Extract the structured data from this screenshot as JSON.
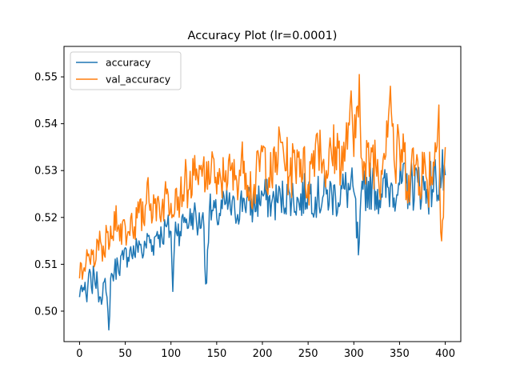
{
  "chart_data": {
    "type": "line",
    "title": "Accuracy Plot (lr=0.0001)",
    "xlabel": "",
    "ylabel": "",
    "xlim": [
      -17,
      417
    ],
    "ylim": [
      0.4935,
      0.5565
    ],
    "xticks": [
      0,
      50,
      100,
      150,
      200,
      250,
      300,
      350,
      400
    ],
    "yticks": [
      0.5,
      0.51,
      0.52,
      0.53,
      0.54,
      0.55
    ],
    "ytick_labels": [
      "0.50",
      "0.51",
      "0.52",
      "0.53",
      "0.54",
      "0.55"
    ],
    "grid": false,
    "legend_position": "top-left",
    "series": [
      {
        "name": "accuracy",
        "color": "#1f77b4",
        "key_points": [
          [
            0,
            0.503
          ],
          [
            2,
            0.5055
          ],
          [
            5,
            0.5045
          ],
          [
            8,
            0.502
          ],
          [
            10,
            0.508
          ],
          [
            13,
            0.505
          ],
          [
            16,
            0.508
          ],
          [
            20,
            0.505
          ],
          [
            23,
            0.503
          ],
          [
            26,
            0.506
          ],
          [
            29,
            0.504
          ],
          [
            32,
            0.496
          ],
          [
            34,
            0.507
          ],
          [
            38,
            0.5085
          ],
          [
            42,
            0.51
          ],
          [
            48,
            0.511
          ],
          [
            55,
            0.513
          ],
          [
            60,
            0.512
          ],
          [
            65,
            0.515
          ],
          [
            70,
            0.512
          ],
          [
            75,
            0.516
          ],
          [
            80,
            0.514
          ],
          [
            85,
            0.517
          ],
          [
            90,
            0.516
          ],
          [
            95,
            0.518
          ],
          [
            100,
            0.517
          ],
          [
            102,
            0.5042
          ],
          [
            105,
            0.519
          ],
          [
            110,
            0.517
          ],
          [
            115,
            0.52
          ],
          [
            120,
            0.519
          ],
          [
            125,
            0.521
          ],
          [
            130,
            0.518
          ],
          [
            135,
            0.521
          ],
          [
            138,
            0.5058
          ],
          [
            142,
            0.5215
          ],
          [
            150,
            0.52
          ],
          [
            160,
            0.523
          ],
          [
            170,
            0.521
          ],
          [
            180,
            0.524
          ],
          [
            190,
            0.522
          ],
          [
            200,
            0.525
          ],
          [
            210,
            0.523
          ],
          [
            220,
            0.524
          ],
          [
            230,
            0.525
          ],
          [
            240,
            0.523
          ],
          [
            250,
            0.526
          ],
          [
            260,
            0.524
          ],
          [
            270,
            0.525
          ],
          [
            280,
            0.5245
          ],
          [
            290,
            0.526
          ],
          [
            300,
            0.5255
          ],
          [
            305,
            0.512
          ],
          [
            310,
            0.526
          ],
          [
            320,
            0.527
          ],
          [
            330,
            0.525
          ],
          [
            340,
            0.5265
          ],
          [
            350,
            0.527
          ],
          [
            360,
            0.5265
          ],
          [
            370,
            0.5275
          ],
          [
            380,
            0.526
          ],
          [
            390,
            0.528
          ],
          [
            400,
            0.529
          ]
        ]
      },
      {
        "name": "val_accuracy",
        "color": "#ff7f0e",
        "key_points": [
          [
            0,
            0.507
          ],
          [
            3,
            0.5068
          ],
          [
            6,
            0.5085
          ],
          [
            9,
            0.5118
          ],
          [
            12,
            0.51
          ],
          [
            15,
            0.513
          ],
          [
            18,
            0.511
          ],
          [
            21,
            0.513
          ],
          [
            24,
            0.514
          ],
          [
            27,
            0.512
          ],
          [
            31,
            0.517
          ],
          [
            33,
            0.514
          ],
          [
            36,
            0.516
          ],
          [
            40,
            0.5225
          ],
          [
            44,
            0.515
          ],
          [
            48,
            0.5195
          ],
          [
            52,
            0.516
          ],
          [
            56,
            0.52
          ],
          [
            60,
            0.518
          ],
          [
            65,
            0.521
          ],
          [
            70,
            0.519
          ],
          [
            75,
            0.5285
          ],
          [
            80,
            0.52
          ],
          [
            85,
            0.524
          ],
          [
            90,
            0.522
          ],
          [
            95,
            0.525
          ],
          [
            100,
            0.523
          ],
          [
            105,
            0.526
          ],
          [
            110,
            0.524
          ],
          [
            115,
            0.528
          ],
          [
            120,
            0.526
          ],
          [
            125,
            0.529
          ],
          [
            130,
            0.527
          ],
          [
            135,
            0.531
          ],
          [
            140,
            0.526
          ],
          [
            145,
            0.534
          ],
          [
            150,
            0.525
          ],
          [
            160,
            0.53
          ],
          [
            170,
            0.528
          ],
          [
            180,
            0.532
          ],
          [
            190,
            0.525
          ],
          [
            200,
            0.534
          ],
          [
            210,
            0.528
          ],
          [
            220,
            0.536
          ],
          [
            230,
            0.529
          ],
          [
            240,
            0.534
          ],
          [
            250,
            0.527
          ],
          [
            260,
            0.538
          ],
          [
            270,
            0.53
          ],
          [
            280,
            0.535
          ],
          [
            290,
            0.532
          ],
          [
            296,
            0.544
          ],
          [
            300,
            0.533
          ],
          [
            306,
            0.5505
          ],
          [
            310,
            0.528
          ],
          [
            320,
            0.534
          ],
          [
            330,
            0.53
          ],
          [
            340,
            0.548
          ],
          [
            345,
            0.53
          ],
          [
            350,
            0.535
          ],
          [
            360,
            0.529
          ],
          [
            370,
            0.532
          ],
          [
            380,
            0.528
          ],
          [
            390,
            0.534
          ],
          [
            393,
            0.544
          ],
          [
            396,
            0.515
          ],
          [
            400,
            0.535
          ]
        ]
      }
    ]
  }
}
